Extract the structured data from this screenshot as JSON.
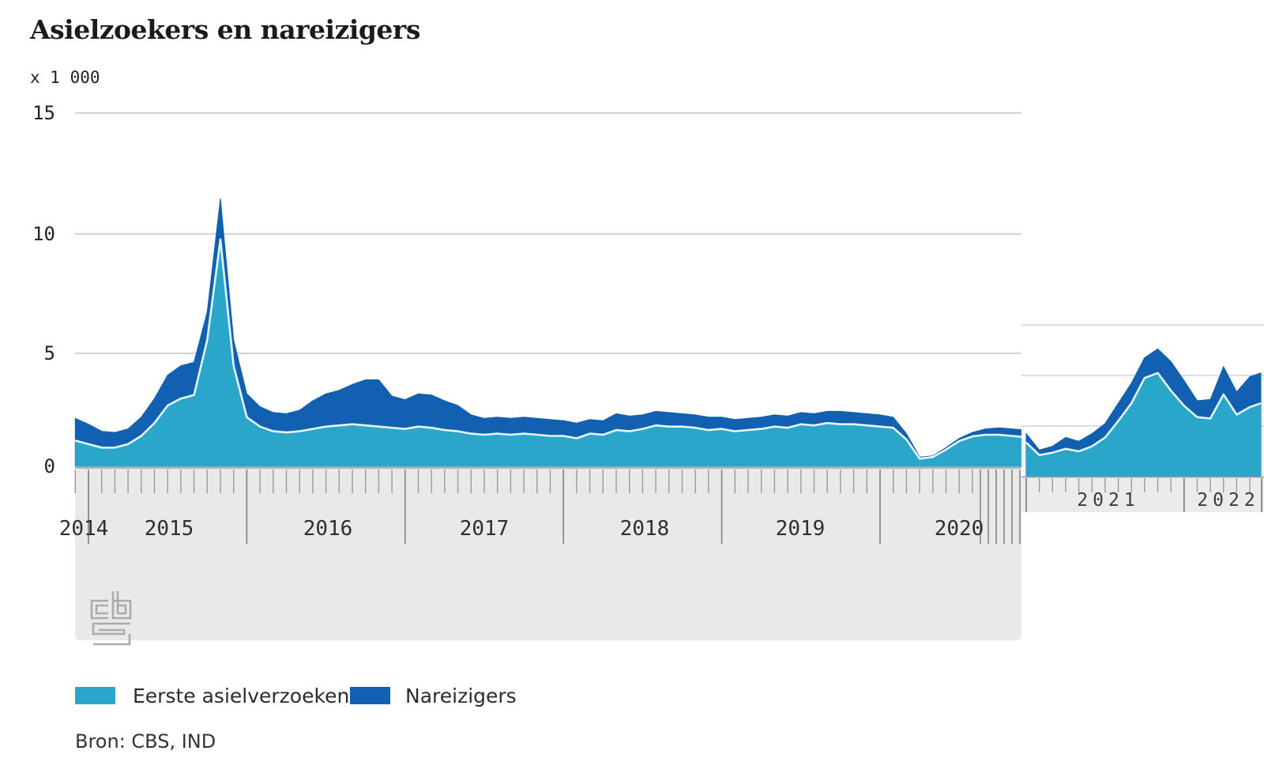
{
  "title": "Asielzoekers en nareizigers",
  "unit_label": "x 1 000",
  "y_axis": {
    "ticks": [
      "15",
      "10",
      "5",
      "0"
    ]
  },
  "x_axis_main": {
    "years": [
      "2014",
      "2015",
      "2016",
      "2017",
      "2018",
      "2019",
      "2020"
    ]
  },
  "x_axis_overlay": {
    "years": [
      "2021",
      "2022"
    ]
  },
  "legend": [
    {
      "label": "Eerste asielverzoeken",
      "color": "#2aa6ca"
    },
    {
      "label": "Nareizigers",
      "color": "#1160b2"
    }
  ],
  "source": "Bron: CBS, IND",
  "logo": "cbs-logo",
  "colors": {
    "eerste": "#2aa6ca",
    "nareizigers": "#1160b2",
    "cyan_top_stroke": "#e4f5fb",
    "gridline_main": "#c3c3c3",
    "gridline_overlay": "#d2d2d2",
    "panel_gray": "#e9e9e9",
    "tick_gray": "#9a9a9a",
    "boundary_gray": "#858585",
    "logo_gray": "#ababab"
  },
  "chart_data": {
    "type": "area",
    "stacked": true,
    "title": "Asielzoekers en nareizigers",
    "ylabel": "x 1 000",
    "frequency": "monthly",
    "legend_position": "bottom",
    "grid": true,
    "main_panel": {
      "x_start": "2014-12",
      "x_end": "2020-12",
      "ylim": [
        0,
        15
      ],
      "gridline_values": [
        5,
        10,
        15
      ],
      "series": [
        {
          "name": "Eerste asielverzoeken",
          "values": [
            1.1,
            0.95,
            0.8,
            0.8,
            0.95,
            1.3,
            1.85,
            2.6,
            2.9,
            3.05,
            5.4,
            9.7,
            4.3,
            2.1,
            1.7,
            1.5,
            1.45,
            1.5,
            1.6,
            1.7,
            1.75,
            1.8,
            1.75,
            1.7,
            1.65,
            1.6,
            1.7,
            1.65,
            1.55,
            1.5,
            1.4,
            1.35,
            1.4,
            1.35,
            1.4,
            1.35,
            1.3,
            1.3,
            1.2,
            1.4,
            1.35,
            1.55,
            1.5,
            1.6,
            1.75,
            1.7,
            1.7,
            1.65,
            1.55,
            1.6,
            1.5,
            1.55,
            1.6,
            1.7,
            1.65,
            1.8,
            1.75,
            1.85,
            1.8,
            1.8,
            1.75,
            1.7,
            1.65,
            1.15,
            0.33,
            0.4,
            0.72,
            1.08,
            1.28,
            1.35,
            1.35,
            1.3,
            1.25
          ]
        },
        {
          "name": "Nareizigers",
          "values": [
            0.95,
            0.85,
            0.7,
            0.65,
            0.65,
            0.8,
            1.05,
            1.3,
            1.4,
            1.4,
            1.2,
            1.75,
            1.1,
            1.0,
            0.85,
            0.8,
            0.8,
            0.9,
            1.2,
            1.4,
            1.5,
            1.7,
            1.95,
            2.0,
            1.35,
            1.25,
            1.4,
            1.4,
            1.25,
            1.1,
            0.8,
            0.7,
            0.7,
            0.7,
            0.7,
            0.7,
            0.7,
            0.65,
            0.65,
            0.6,
            0.6,
            0.7,
            0.65,
            0.6,
            0.6,
            0.6,
            0.55,
            0.55,
            0.55,
            0.5,
            0.5,
            0.5,
            0.5,
            0.5,
            0.5,
            0.5,
            0.5,
            0.5,
            0.55,
            0.5,
            0.5,
            0.5,
            0.45,
            0.25,
            0.07,
            0.05,
            0.08,
            0.12,
            0.17,
            0.25,
            0.3,
            0.3,
            0.3
          ]
        }
      ]
    },
    "overlay_panel": {
      "x_start": "2021-01",
      "x_end": "2022-07",
      "ylim": [
        0,
        7.5
      ],
      "gridline_values": [
        2,
        4,
        6
      ],
      "series": [
        {
          "name": "Eerste asielverzoeken",
          "values": [
            1.35,
            0.85,
            0.95,
            1.1,
            1.0,
            1.2,
            1.55,
            2.2,
            2.9,
            3.9,
            4.1,
            3.4,
            2.8,
            2.35,
            2.3,
            3.25,
            2.45,
            2.75,
            2.9
          ]
        },
        {
          "name": "Nareizigers",
          "values": [
            0.35,
            0.2,
            0.25,
            0.45,
            0.4,
            0.5,
            0.55,
            0.7,
            0.8,
            0.8,
            0.95,
            1.15,
            1.0,
            0.65,
            0.75,
            1.1,
            0.9,
            1.2,
            1.2
          ]
        }
      ]
    }
  }
}
